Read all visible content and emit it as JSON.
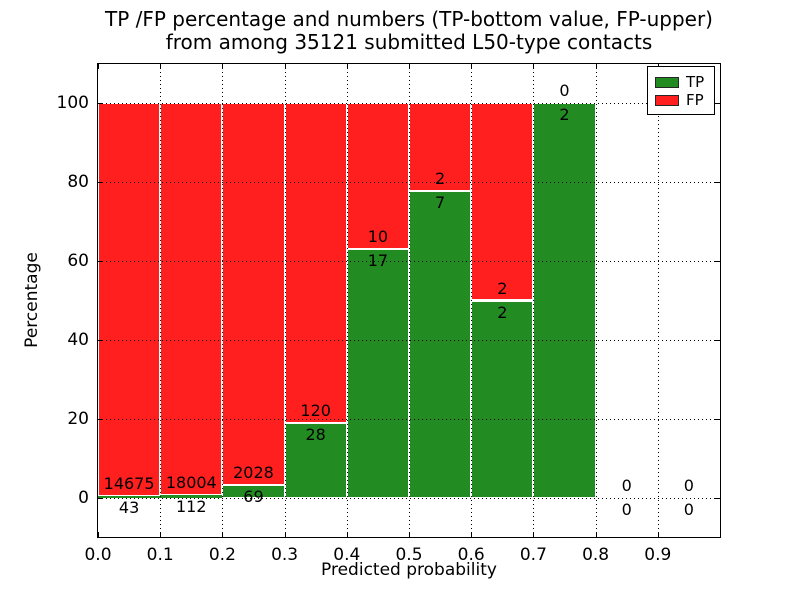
{
  "title": {
    "line1": "TP /FP percentage and numbers (TP-bottom value, FP-upper)",
    "line2": "from among 35121 submitted L50-type contacts"
  },
  "axes": {
    "xlabel": "Predicted probability",
    "ylabel": "Percentage",
    "x_tick_labels": [
      "0.0",
      "0.1",
      "0.2",
      "0.3",
      "0.4",
      "0.5",
      "0.6",
      "0.7",
      "0.8",
      "0.9"
    ],
    "y_tick_labels": [
      "0",
      "20",
      "40",
      "60",
      "80",
      "100"
    ],
    "xlim": [
      0.0,
      1.0
    ],
    "ylim": [
      -10,
      110
    ],
    "grid": true,
    "grid_style": "dotted"
  },
  "legend": {
    "position": "upper-right",
    "items": [
      {
        "label": "TP",
        "color": "#228b22"
      },
      {
        "label": "FP",
        "color": "#ff1f1f"
      }
    ]
  },
  "colors": {
    "tp": "#228b22",
    "fp": "#ff1f1f",
    "bar_edge": "#ffffff",
    "text": "#000000",
    "background": "#ffffff"
  },
  "chart_data": {
    "type": "bar",
    "stacked": true,
    "bin_width": 0.1,
    "bin_starts": [
      0.0,
      0.1,
      0.2,
      0.3,
      0.4,
      0.5,
      0.6,
      0.7,
      0.8,
      0.9
    ],
    "categories": [
      "0.0-0.1",
      "0.1-0.2",
      "0.2-0.3",
      "0.3-0.4",
      "0.4-0.5",
      "0.5-0.6",
      "0.6-0.7",
      "0.7-0.8",
      "0.8-0.9",
      "0.9-1.0"
    ],
    "series": [
      {
        "name": "TP",
        "color": "#228b22",
        "counts": [
          43,
          112,
          69,
          28,
          17,
          7,
          2,
          2,
          0,
          0
        ],
        "percent": [
          0.29,
          0.62,
          3.29,
          18.92,
          62.96,
          77.78,
          50.0,
          100.0,
          0.0,
          0.0
        ]
      },
      {
        "name": "FP",
        "color": "#ff1f1f",
        "counts": [
          14675,
          18004,
          2028,
          120,
          10,
          2,
          2,
          0,
          0,
          0
        ],
        "percent": [
          99.71,
          99.38,
          96.71,
          81.08,
          37.04,
          22.22,
          50.0,
          0.0,
          0.0,
          0.0
        ]
      }
    ],
    "total_submitted": 35121,
    "label_note": "TP count drawn below green top, FP count drawn above green top"
  }
}
